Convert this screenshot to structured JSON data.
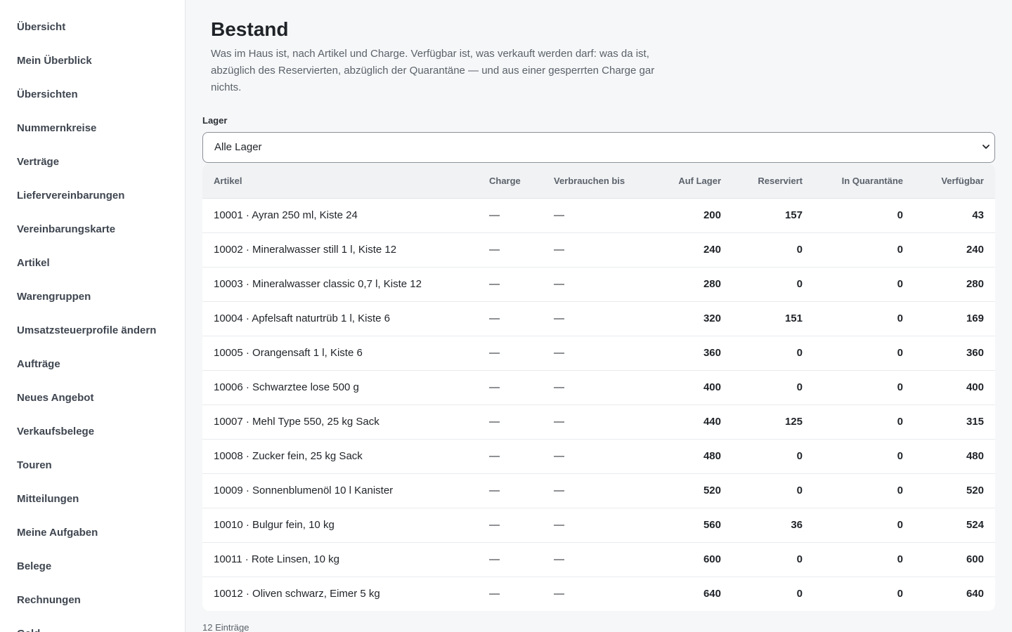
{
  "sidebar": {
    "items": [
      {
        "label": "Übersicht"
      },
      {
        "label": "Mein Überblick"
      },
      {
        "label": "Übersichten"
      },
      {
        "label": "Nummernkreise"
      },
      {
        "label": "Verträge"
      },
      {
        "label": "Liefervereinbarungen"
      },
      {
        "label": "Vereinbarungskarte"
      },
      {
        "label": "Artikel"
      },
      {
        "label": "Warengruppen"
      },
      {
        "label": "Umsatzsteuerprofile ändern"
      },
      {
        "label": "Aufträge"
      },
      {
        "label": "Neues Angebot"
      },
      {
        "label": "Verkaufsbelege"
      },
      {
        "label": "Touren"
      },
      {
        "label": "Mitteilungen"
      },
      {
        "label": "Meine Aufgaben"
      },
      {
        "label": "Belege"
      },
      {
        "label": "Rechnungen"
      },
      {
        "label": "Geld…"
      }
    ]
  },
  "page": {
    "title": "Bestand",
    "description": "Was im Haus ist, nach Artikel und Charge. Verfügbar ist, was verkauft werden darf: was da ist, abzüglich des Reservierten, abzüglich der Quarantäne — und aus einer gesperrten Charge gar nichts."
  },
  "filter": {
    "label": "Lager",
    "selected": "Alle Lager"
  },
  "table": {
    "headers": {
      "artikel": "Artikel",
      "charge": "Charge",
      "verbrauchen_bis": "Verbrauchen bis",
      "auf_lager": "Auf Lager",
      "reserviert": "Reserviert",
      "quarantaene": "In Quarantäne",
      "verfuegbar": "Verfügbar"
    },
    "rows": [
      {
        "artikel": "10001 · Ayran 250 ml, Kiste 24",
        "charge": "—",
        "verbrauchen_bis": "—",
        "auf_lager": "200",
        "reserviert": "157",
        "quarantaene": "0",
        "verfuegbar": "43"
      },
      {
        "artikel": "10002 · Mineralwasser still 1 l, Kiste 12",
        "charge": "—",
        "verbrauchen_bis": "—",
        "auf_lager": "240",
        "reserviert": "0",
        "quarantaene": "0",
        "verfuegbar": "240"
      },
      {
        "artikel": "10003 · Mineralwasser classic 0,7 l, Kiste 12",
        "charge": "—",
        "verbrauchen_bis": "—",
        "auf_lager": "280",
        "reserviert": "0",
        "quarantaene": "0",
        "verfuegbar": "280"
      },
      {
        "artikel": "10004 · Apfelsaft naturtrüb 1 l, Kiste 6",
        "charge": "—",
        "verbrauchen_bis": "—",
        "auf_lager": "320",
        "reserviert": "151",
        "quarantaene": "0",
        "verfuegbar": "169"
      },
      {
        "artikel": "10005 · Orangensaft 1 l, Kiste 6",
        "charge": "—",
        "verbrauchen_bis": "—",
        "auf_lager": "360",
        "reserviert": "0",
        "quarantaene": "0",
        "verfuegbar": "360"
      },
      {
        "artikel": "10006 · Schwarztee lose 500 g",
        "charge": "—",
        "verbrauchen_bis": "—",
        "auf_lager": "400",
        "reserviert": "0",
        "quarantaene": "0",
        "verfuegbar": "400"
      },
      {
        "artikel": "10007 · Mehl Type 550, 25 kg Sack",
        "charge": "—",
        "verbrauchen_bis": "—",
        "auf_lager": "440",
        "reserviert": "125",
        "quarantaene": "0",
        "verfuegbar": "315"
      },
      {
        "artikel": "10008 · Zucker fein, 25 kg Sack",
        "charge": "—",
        "verbrauchen_bis": "—",
        "auf_lager": "480",
        "reserviert": "0",
        "quarantaene": "0",
        "verfuegbar": "480"
      },
      {
        "artikel": "10009 · Sonnenblumenöl 10 l Kanister",
        "charge": "—",
        "verbrauchen_bis": "—",
        "auf_lager": "520",
        "reserviert": "0",
        "quarantaene": "0",
        "verfuegbar": "520"
      },
      {
        "artikel": "10010 · Bulgur fein, 10 kg",
        "charge": "—",
        "verbrauchen_bis": "—",
        "auf_lager": "560",
        "reserviert": "36",
        "quarantaene": "0",
        "verfuegbar": "524"
      },
      {
        "artikel": "10011 · Rote Linsen, 10 kg",
        "charge": "—",
        "verbrauchen_bis": "—",
        "auf_lager": "600",
        "reserviert": "0",
        "quarantaene": "0",
        "verfuegbar": "600"
      },
      {
        "artikel": "10012 · Oliven schwarz, Eimer 5 kg",
        "charge": "—",
        "verbrauchen_bis": "—",
        "auf_lager": "640",
        "reserviert": "0",
        "quarantaene": "0",
        "verfuegbar": "640"
      }
    ]
  },
  "footer": {
    "count": "12 Einträge"
  },
  "icons": {
    "select_chevron": "chevron-down-icon"
  }
}
